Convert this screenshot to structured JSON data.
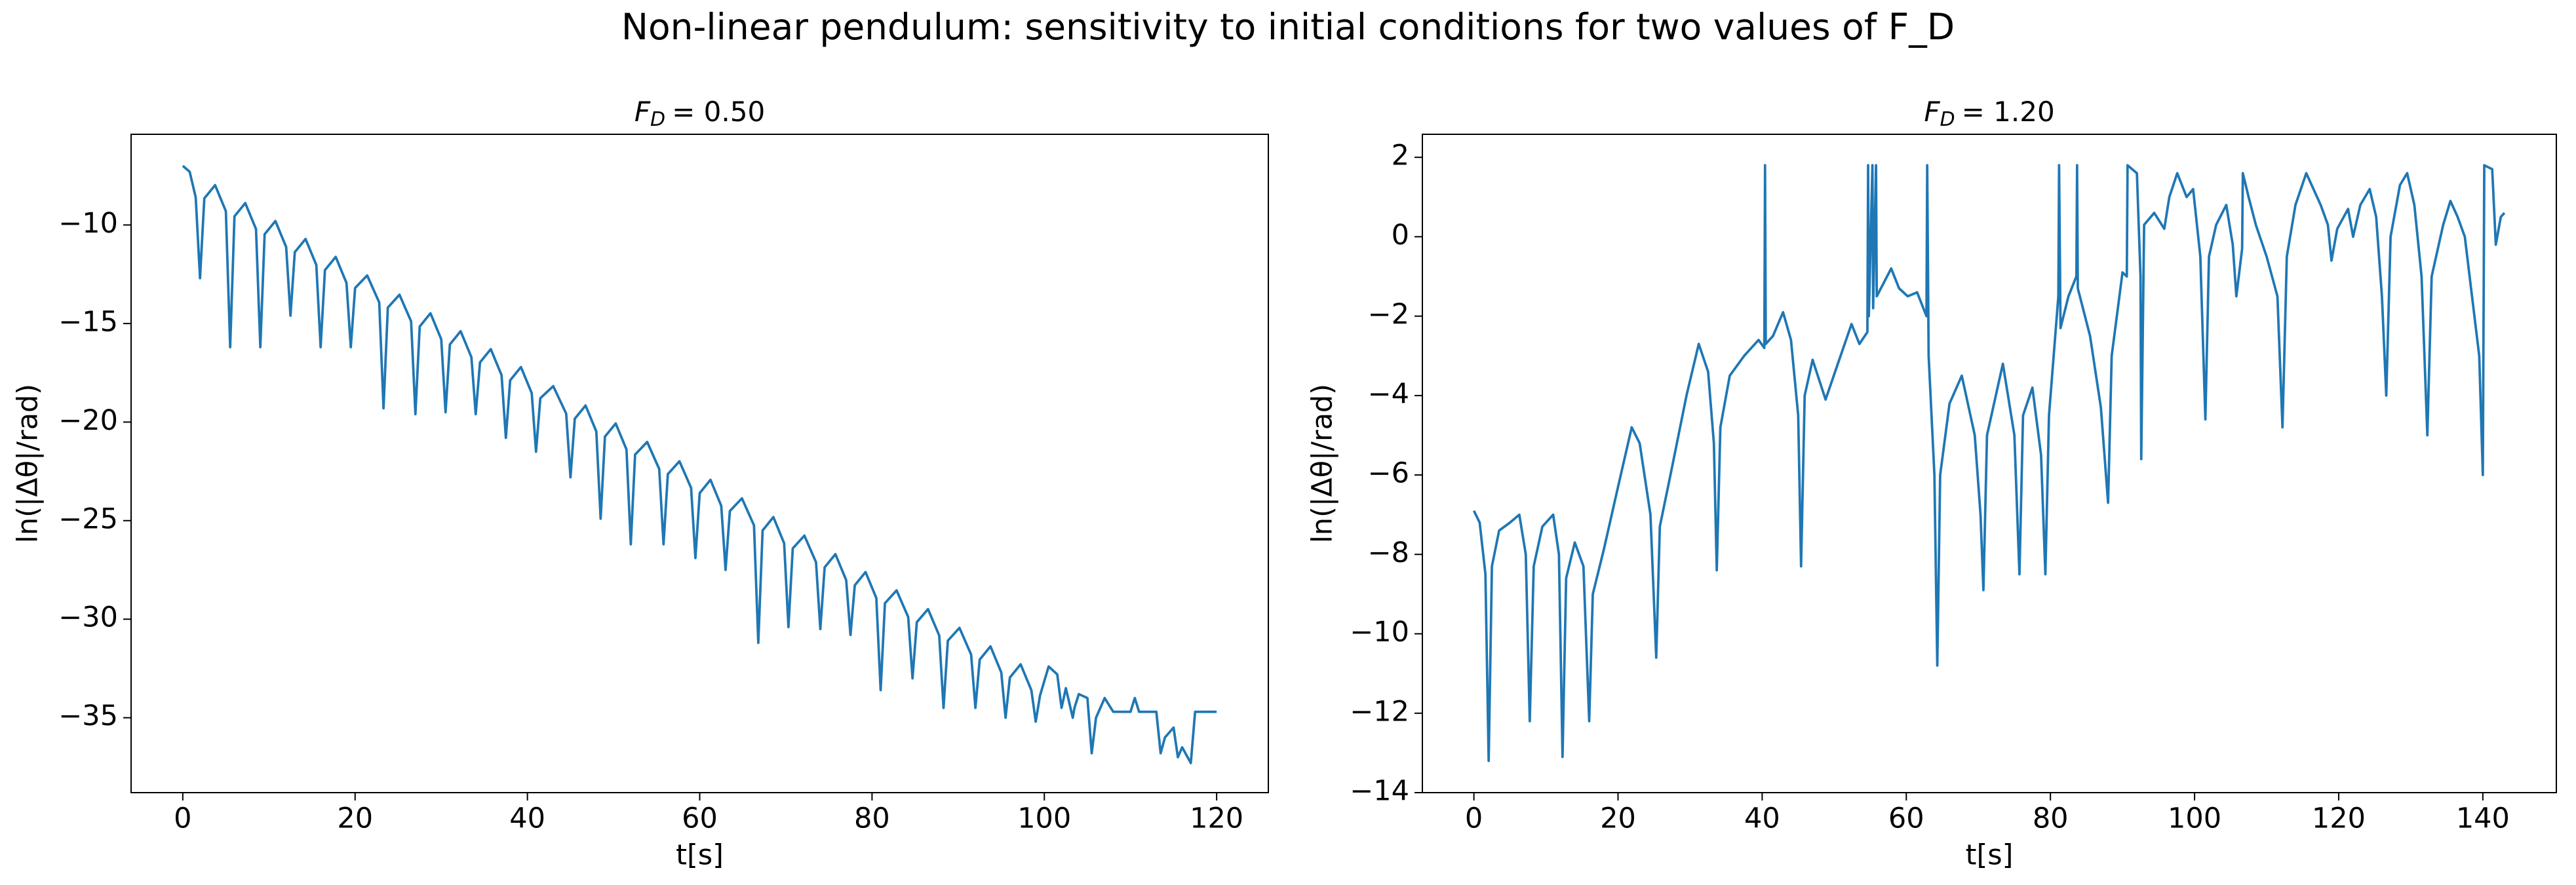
{
  "title": "Non-linear pendulum: sensitivity to initial conditions for two values of F_D",
  "chart_data": [
    {
      "type": "line",
      "title": {
        "symbol": "F",
        "subscript": "D",
        "value": "= 0.50"
      },
      "xlabel": "t[s]",
      "ylabel": "ln(|Δθ|/rad)",
      "color": "#1f77b4",
      "xlim": [
        -6,
        126
      ],
      "ylim": [
        -38.8,
        -5.4
      ],
      "xticks": [
        0,
        20,
        40,
        60,
        80,
        100,
        120
      ],
      "yticks": [
        {
          "value": -35,
          "label": "−35"
        },
        {
          "value": -30,
          "label": "−30"
        },
        {
          "value": -25,
          "label": "−25"
        },
        {
          "value": -20,
          "label": "−20"
        },
        {
          "value": -15,
          "label": "−15"
        },
        {
          "value": -10,
          "label": "−10"
        }
      ],
      "x": [
        0,
        0.8,
        1.5,
        2,
        2.5,
        3.75,
        5,
        5.5,
        6,
        7.25,
        8.5,
        9,
        9.5,
        10.75,
        12,
        12.5,
        13,
        14.25,
        15.5,
        16,
        16.5,
        17.75,
        19,
        19.5,
        20,
        21.4,
        22.8,
        23.3,
        23.8,
        25.15,
        26.5,
        27,
        27.5,
        28.75,
        30,
        30.5,
        31,
        32.25,
        33.5,
        34,
        34.5,
        35.75,
        37,
        37.5,
        38,
        39.25,
        40.5,
        41,
        41.5,
        43,
        44.5,
        45,
        45.5,
        46.75,
        48,
        48.5,
        49,
        50.25,
        51.5,
        52,
        52.5,
        53.9,
        55.3,
        55.8,
        56.3,
        57.65,
        59,
        59.5,
        60,
        61.25,
        62.5,
        63,
        63.5,
        64.9,
        66.3,
        66.8,
        67.3,
        68.55,
        69.8,
        70.3,
        70.8,
        72.15,
        73.5,
        74,
        74.5,
        75.75,
        77,
        77.5,
        78,
        79.25,
        80.5,
        81,
        81.5,
        82.85,
        84.2,
        84.7,
        85.2,
        86.5,
        87.8,
        88.3,
        88.8,
        90.15,
        91.5,
        92,
        92.5,
        93.75,
        95,
        95.5,
        96,
        97.25,
        98.5,
        99,
        99.5,
        100.5,
        101.5,
        102,
        102.5,
        103.3,
        103.5,
        104,
        105,
        105.5,
        106,
        107,
        108,
        110,
        110.5,
        111,
        113,
        113.5,
        114,
        115,
        115.5,
        116,
        117,
        117.5,
        120
      ],
      "values": [
        -7.0,
        -7.3,
        -8.6,
        -12.7,
        -8.65,
        -7.98,
        -9.3,
        -16.2,
        -9.56,
        -8.89,
        -10.21,
        -16.2,
        -10.47,
        -9.8,
        -11.12,
        -14.6,
        -11.38,
        -10.71,
        -12.03,
        -16.2,
        -12.29,
        -11.62,
        -12.94,
        -16.2,
        -13.2,
        -12.56,
        -13.93,
        -19.3,
        -14.19,
        -13.54,
        -14.89,
        -19.6,
        -15.15,
        -14.48,
        -15.8,
        -19.5,
        -16.06,
        -15.39,
        -16.71,
        -19.6,
        -16.97,
        -16.3,
        -17.62,
        -20.8,
        -17.88,
        -17.21,
        -18.53,
        -21.5,
        -18.79,
        -18.18,
        -19.57,
        -22.8,
        -19.83,
        -19.16,
        -20.48,
        -24.9,
        -20.74,
        -20.07,
        -21.39,
        -26.2,
        -21.65,
        -21.01,
        -22.38,
        -26.2,
        -22.64,
        -21.99,
        -23.34,
        -26.9,
        -23.6,
        -22.93,
        -24.25,
        -27.5,
        -24.51,
        -23.87,
        -25.24,
        -31.2,
        -25.5,
        -24.82,
        -26.15,
        -30.4,
        -26.41,
        -25.76,
        -27.11,
        -30.5,
        -27.37,
        -26.7,
        -28.02,
        -30.8,
        -28.28,
        -27.61,
        -28.93,
        -33.6,
        -29.19,
        -28.54,
        -29.89,
        -33,
        -30.15,
        -29.49,
        -30.83,
        -34.5,
        -31.09,
        -30.44,
        -31.79,
        -34.5,
        -32.05,
        -31.38,
        -32.7,
        -35,
        -32.96,
        -32.29,
        -33.61,
        -35.2,
        -33.87,
        -32.4,
        -32.8,
        -34.5,
        -33.5,
        -35,
        -34.5,
        -33.8,
        -34,
        -36.8,
        -35,
        -34,
        -34.7,
        -34.7,
        -34,
        -34.7,
        -34.7,
        -36.8,
        -36,
        -35.5,
        -37,
        -36.5,
        -37.3,
        -34.7,
        -34.7
      ]
    },
    {
      "type": "line",
      "title": {
        "symbol": "F",
        "subscript": "D",
        "value": "= 1.20"
      },
      "xlabel": "t[s]",
      "ylabel": "ln(|Δθ|/rad)",
      "color": "#1f77b4",
      "xlim": [
        -7.15,
        150.2
      ],
      "ylim": [
        -14,
        2.58
      ],
      "xticks": [
        0,
        20,
        40,
        60,
        80,
        100,
        120,
        140
      ],
      "yticks": [
        {
          "value": -14,
          "label": "−14"
        },
        {
          "value": -12,
          "label": "−12"
        },
        {
          "value": -10,
          "label": "−10"
        },
        {
          "value": -8,
          "label": "−8"
        },
        {
          "value": -6,
          "label": "−6"
        },
        {
          "value": -4,
          "label": "−4"
        },
        {
          "value": -2,
          "label": "−2"
        },
        0,
        2
      ],
      "x": [
        0,
        0.8,
        1.6,
        2.05,
        2.5,
        3.5,
        5,
        6.3,
        7.2,
        7.75,
        8.3,
        9.5,
        11,
        11.8,
        12.3,
        12.8,
        14,
        15.2,
        16,
        16.5,
        18,
        20,
        21.9,
        23,
        24.5,
        25.3,
        25.8,
        27.5,
        29.5,
        31.2,
        32.5,
        33.3,
        33.7,
        34.2,
        35.5,
        37.5,
        39.5,
        40.3,
        40.4,
        40.5,
        41.5,
        42.9,
        44,
        45,
        45.4,
        45.9,
        47,
        48.8,
        50.5,
        52.4,
        53.5,
        54.6,
        54.7,
        54.8,
        55.3,
        55.4,
        55.8,
        55.9,
        57.9,
        59,
        60.2,
        61.5,
        62.8,
        62.9,
        63.1,
        63.9,
        64.3,
        64.7,
        66,
        67.7,
        69.5,
        70.3,
        70.7,
        71.2,
        73.4,
        75,
        75.7,
        76.2,
        77.5,
        78.7,
        79.3,
        79.8,
        81.1,
        81.2,
        81.4,
        82.5,
        83.6,
        83.7,
        83.8,
        85.5,
        87,
        88,
        88.5,
        90,
        90.6,
        90.7,
        92,
        92.5,
        92.6,
        93,
        94.4,
        95.8,
        96.5,
        97.6,
        98.9,
        99.8,
        100.8,
        101.5,
        102,
        103,
        104.4,
        105.3,
        105.8,
        106.6,
        106.7,
        107.5,
        108.5,
        110,
        111.5,
        112.2,
        112.8,
        114,
        115.5,
        116.5,
        117.5,
        118.5,
        119,
        119.8,
        121.3,
        122,
        123,
        124.3,
        125.2,
        126,
        126.6,
        127.2,
        128.5,
        129.5,
        130.5,
        131.5,
        132.3,
        132.9,
        134.5,
        135.5,
        136.5,
        137.5,
        138.5,
        139.5,
        140,
        140.2,
        141.3,
        141.8,
        142.5,
        143
      ],
      "values": [
        -6.9,
        -7.2,
        -8.5,
        -13.2,
        -8.3,
        -7.4,
        -7.2,
        -7.0,
        -8.0,
        -12.2,
        -8.3,
        -7.3,
        -7.0,
        -8.0,
        -13.1,
        -8.6,
        -7.7,
        -8.3,
        -12.2,
        -9.0,
        -7.9,
        -6.3,
        -4.8,
        -5.2,
        -7.0,
        -10.6,
        -7.3,
        -5.8,
        -4.0,
        -2.7,
        -3.4,
        -5.2,
        -8.4,
        -4.8,
        -3.5,
        -3.0,
        -2.6,
        -2.8,
        1.8,
        -2.7,
        -2.5,
        -1.9,
        -2.6,
        -4.5,
        -8.3,
        -4.0,
        -3.1,
        -4.1,
        -3.2,
        -2.2,
        -2.7,
        -2.4,
        1.8,
        -2.0,
        1.8,
        -1.8,
        1.8,
        -1.5,
        -0.8,
        -1.3,
        -1.5,
        -1.4,
        -2.0,
        1.8,
        -3.0,
        -6,
        -10.8,
        -6,
        -4.2,
        -3.5,
        -5,
        -7,
        -8.9,
        -5,
        -3.2,
        -5,
        -8.5,
        -4.5,
        -3.8,
        -5.5,
        -8.5,
        -4.5,
        -1.5,
        1.8,
        -2.3,
        -1.5,
        -1.0,
        1.8,
        -1.3,
        -2.5,
        -4.3,
        -6.7,
        -3.0,
        -0.9,
        -1.0,
        1.8,
        1.6,
        -1,
        -5.6,
        0.3,
        0.6,
        0.2,
        1.0,
        1.6,
        1.0,
        1.2,
        -0.5,
        -4.6,
        -0.5,
        0.3,
        0.8,
        -0.2,
        -1.5,
        -0.3,
        1.6,
        1.0,
        0.3,
        -0.5,
        -1.5,
        -4.8,
        -0.5,
        0.8,
        1.6,
        1.2,
        0.8,
        0.3,
        -0.6,
        0.2,
        0.7,
        0,
        0.8,
        1.2,
        0.5,
        -1.5,
        -4.0,
        0,
        1.3,
        1.6,
        0.8,
        -1.0,
        -5.0,
        -1.0,
        0.3,
        0.9,
        0.5,
        0,
        -1.5,
        -3.0,
        -6.0,
        1.8,
        1.7,
        -0.2,
        0.5,
        0.6
      ]
    }
  ]
}
